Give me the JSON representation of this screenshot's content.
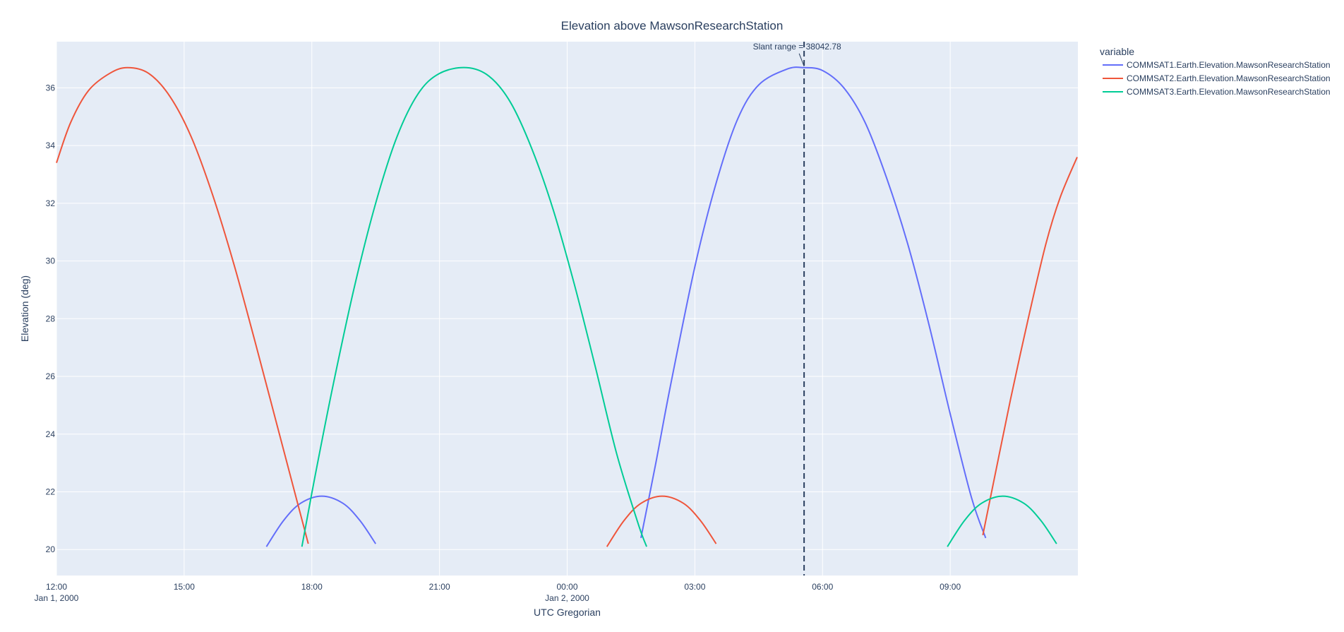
{
  "chart_data": {
    "type": "line",
    "title": "Elevation above MawsonResearchStation",
    "xlabel": "UTC Gregorian",
    "ylabel": "Elevation (deg)",
    "x_unit": "hours",
    "xlim": [
      "2000-01-01 12:00",
      "2000-01-02 12:00"
    ],
    "ylim": [
      19.1,
      37.6
    ],
    "grid": true,
    "x_ticks": [
      {
        "x": "2000-01-01 12:00",
        "label": "12:00",
        "sublabel": "Jan 1, 2000"
      },
      {
        "x": "2000-01-01 15:00",
        "label": "15:00",
        "sublabel": ""
      },
      {
        "x": "2000-01-01 18:00",
        "label": "18:00",
        "sublabel": ""
      },
      {
        "x": "2000-01-01 21:00",
        "label": "21:00",
        "sublabel": ""
      },
      {
        "x": "2000-01-02 00:00",
        "label": "00:00",
        "sublabel": "Jan 2, 2000"
      },
      {
        "x": "2000-01-02 03:00",
        "label": "03:00",
        "sublabel": ""
      },
      {
        "x": "2000-01-02 06:00",
        "label": "06:00",
        "sublabel": ""
      },
      {
        "x": "2000-01-02 09:00",
        "label": "09:00",
        "sublabel": ""
      }
    ],
    "y_ticks": [
      20,
      22,
      24,
      26,
      28,
      30,
      32,
      34,
      36
    ],
    "legend": {
      "title": "variable",
      "position": "top-right"
    },
    "series": [
      {
        "name": "COMMSAT1.Earth.Elevation.MawsonResearchStation",
        "color": "#636efa",
        "segments": [
          [
            [
              "2000-01-01 16:56",
              20.1
            ],
            [
              "2000-01-01 17:20",
              21.0
            ],
            [
              "2000-01-01 17:44",
              21.6
            ],
            [
              "2000-01-01 18:14",
              21.85
            ],
            [
              "2000-01-01 18:44",
              21.6
            ],
            [
              "2000-01-01 19:08",
              21.0
            ],
            [
              "2000-01-01 19:30",
              20.2
            ]
          ],
          [
            [
              "2000-01-02 01:44",
              20.4
            ],
            [
              "2000-01-02 02:05",
              23.0
            ],
            [
              "2000-01-02 02:25",
              25.6
            ],
            [
              "2000-01-02 03:00",
              29.8
            ],
            [
              "2000-01-02 03:30",
              32.7
            ],
            [
              "2000-01-02 04:00",
              34.9
            ],
            [
              "2000-01-02 04:30",
              36.1
            ],
            [
              "2000-01-02 05:10",
              36.65
            ],
            [
              "2000-01-02 05:34",
              36.7
            ],
            [
              "2000-01-02 06:00",
              36.6
            ],
            [
              "2000-01-02 06:30",
              36.0
            ],
            [
              "2000-01-02 07:00",
              34.8
            ],
            [
              "2000-01-02 07:30",
              32.9
            ],
            [
              "2000-01-02 08:00",
              30.6
            ],
            [
              "2000-01-02 08:30",
              27.8
            ],
            [
              "2000-01-02 09:00",
              24.7
            ],
            [
              "2000-01-02 09:30",
              21.8
            ],
            [
              "2000-01-02 09:50",
              20.4
            ]
          ]
        ]
      },
      {
        "name": "COMMSAT2.Earth.Elevation.MawsonResearchStation",
        "color": "#ef553b",
        "segments": [
          [
            [
              "2000-01-01 12:00",
              33.4
            ],
            [
              "2000-01-01 12:20",
              34.8
            ],
            [
              "2000-01-01 12:45",
              35.9
            ],
            [
              "2000-01-01 13:15",
              36.5
            ],
            [
              "2000-01-01 13:40",
              36.7
            ],
            [
              "2000-01-01 14:10",
              36.5
            ],
            [
              "2000-01-01 14:40",
              35.7
            ],
            [
              "2000-01-01 15:10",
              34.3
            ],
            [
              "2000-01-01 15:40",
              32.3
            ],
            [
              "2000-01-01 16:10",
              29.9
            ],
            [
              "2000-01-01 16:40",
              27.2
            ],
            [
              "2000-01-01 17:10",
              24.4
            ],
            [
              "2000-01-01 17:40",
              21.6
            ],
            [
              "2000-01-01 17:55",
              20.2
            ]
          ],
          [
            [
              "2000-01-02 00:56",
              20.1
            ],
            [
              "2000-01-02 01:20",
              21.0
            ],
            [
              "2000-01-02 01:44",
              21.6
            ],
            [
              "2000-01-02 02:14",
              21.85
            ],
            [
              "2000-01-02 02:44",
              21.6
            ],
            [
              "2000-01-02 03:08",
              21.0
            ],
            [
              "2000-01-02 03:30",
              20.2
            ]
          ],
          [
            [
              "2000-01-02 09:46",
              20.5
            ],
            [
              "2000-01-02 10:05",
              22.8
            ],
            [
              "2000-01-02 10:25",
              25.2
            ],
            [
              "2000-01-02 10:50",
              28.0
            ],
            [
              "2000-01-02 11:15",
              30.6
            ],
            [
              "2000-01-02 11:35",
              32.2
            ],
            [
              "2000-01-02 11:59",
              33.6
            ]
          ]
        ]
      },
      {
        "name": "COMMSAT3.Earth.Elevation.MawsonResearchStation",
        "color": "#00cc96",
        "segments": [
          [
            [
              "2000-01-01 17:46",
              20.1
            ],
            [
              "2000-01-01 18:05",
              22.6
            ],
            [
              "2000-01-01 18:30",
              25.7
            ],
            [
              "2000-01-01 19:00",
              29.1
            ],
            [
              "2000-01-01 19:30",
              32.0
            ],
            [
              "2000-01-01 20:00",
              34.3
            ],
            [
              "2000-01-01 20:30",
              35.8
            ],
            [
              "2000-01-01 21:00",
              36.5
            ],
            [
              "2000-01-01 21:38",
              36.7
            ],
            [
              "2000-01-01 22:10",
              36.4
            ],
            [
              "2000-01-01 22:40",
              35.5
            ],
            [
              "2000-01-01 23:10",
              33.9
            ],
            [
              "2000-01-01 23:40",
              31.8
            ],
            [
              "2000-01-02 00:10",
              29.2
            ],
            [
              "2000-01-02 00:40",
              26.3
            ],
            [
              "2000-01-02 01:10",
              23.3
            ],
            [
              "2000-01-02 01:40",
              20.9
            ],
            [
              "2000-01-02 01:52",
              20.1
            ]
          ],
          [
            [
              "2000-01-02 08:56",
              20.1
            ],
            [
              "2000-01-02 09:20",
              21.0
            ],
            [
              "2000-01-02 09:44",
              21.6
            ],
            [
              "2000-01-02 10:14",
              21.85
            ],
            [
              "2000-01-02 10:44",
              21.6
            ],
            [
              "2000-01-02 11:08",
              21.0
            ],
            [
              "2000-01-02 11:30",
              20.2
            ]
          ]
        ]
      }
    ],
    "vline": {
      "x": "2000-01-02 05:34",
      "style": "dashed",
      "color": "#2a3f5f"
    },
    "annotation": {
      "text": "Slant range = 38042.78",
      "x": "2000-01-02 05:34",
      "y": 36.7
    }
  }
}
